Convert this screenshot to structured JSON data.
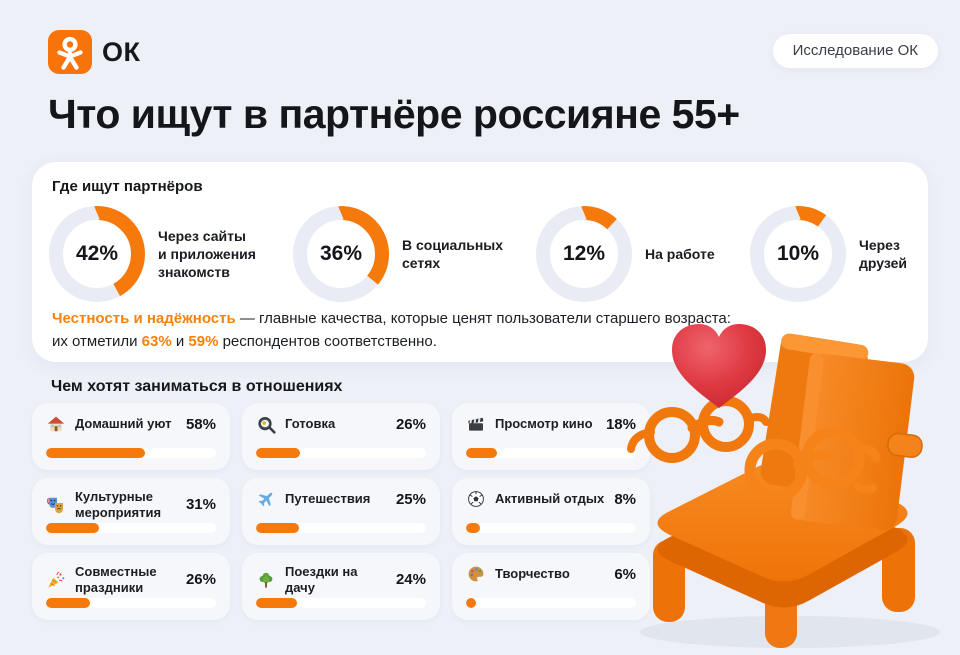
{
  "header": {
    "logo_text": "ОК",
    "badge": "Исследование ОК"
  },
  "title": "Что ищут в партнёре россияне 55+",
  "where_section": {
    "heading": "Где ищут партнёров",
    "items": [
      {
        "percent": 42,
        "percent_label": "42%",
        "label": "Через сайты\nи приложения\nзнакомств"
      },
      {
        "percent": 36,
        "percent_label": "36%",
        "label": "В социальных\nсетях"
      },
      {
        "percent": 12,
        "percent_label": "12%",
        "label": "На работе"
      },
      {
        "percent": 10,
        "percent_label": "10%",
        "label": "Через\nдрузей"
      }
    ],
    "note": {
      "highlight": "Честность и надёжность",
      "line1_rest": " — главные качества, которые ценят пользователи старшего возраста:",
      "line2_prefix": "их отметили ",
      "value1": "63%",
      "line2_mid": " и ",
      "value2": "59%",
      "line2_suffix": " респондентов соответственно."
    }
  },
  "activities_section": {
    "heading": "Чем хотят заниматься в отношениях",
    "items": [
      {
        "icon": "house-icon",
        "label": "Домашний уют",
        "percent": 58,
        "percent_label": "58%"
      },
      {
        "icon": "frying-pan-icon",
        "label": "Готовка",
        "percent": 26,
        "percent_label": "26%"
      },
      {
        "icon": "clapperboard-icon",
        "label": "Просмотр кино",
        "percent": 18,
        "percent_label": "18%"
      },
      {
        "icon": "theater-masks-icon",
        "label": "Культурные\nмероприятия",
        "percent": 31,
        "percent_label": "31%"
      },
      {
        "icon": "airplane-icon",
        "label": "Путешествия",
        "percent": 25,
        "percent_label": "25%"
      },
      {
        "icon": "soccer-ball-icon",
        "label": "Активный отдых",
        "percent": 8,
        "percent_label": "8%"
      },
      {
        "icon": "party-popper-icon",
        "label": "Совместные\nпраздники",
        "percent": 26,
        "percent_label": "26%"
      },
      {
        "icon": "tree-icon",
        "label": "Поездки на дачу",
        "percent": 24,
        "percent_label": "24%"
      },
      {
        "icon": "palette-icon",
        "label": "Творчество",
        "percent": 6,
        "percent_label": "6%"
      }
    ]
  },
  "colors": {
    "accent_orange": "#F6790B",
    "orange_text": "#F5820D",
    "ring_track": "#E9ECF5",
    "page_background": "#EDF0F7",
    "panel_background": "#FFFFFF",
    "card_background": "#F5F7FB",
    "heart_red": "#DF3A43",
    "text_dark": "#16181D"
  },
  "chart_data": [
    {
      "type": "pie",
      "title": "Где ищут партнёров",
      "labels": [
        "Через сайты и приложения знакомств",
        "В социальных сетях",
        "На работе",
        "Через друзей"
      ],
      "values": [
        42,
        36,
        12,
        10
      ],
      "unit": "%",
      "layout": "four separate donut gauges, orange arc clockwise from 12 o'clock on light track, value centered"
    },
    {
      "type": "bar",
      "title": "Чем хотят заниматься в отношениях",
      "categories": [
        "Домашний уют",
        "Готовка",
        "Просмотр кино",
        "Культурные мероприятия",
        "Путешествия",
        "Активный отдых",
        "Совместные праздники",
        "Поездки на дачу",
        "Творчество"
      ],
      "values": [
        58,
        26,
        18,
        31,
        25,
        8,
        26,
        24,
        6
      ],
      "unit": "%",
      "xlim": [
        0,
        100
      ],
      "layout": "3x3 grid of cards, horizontal orange progress bars on white tracks, value right-aligned"
    },
    {
      "type": "table",
      "title": "Главные качества",
      "categories": [
        "Честность",
        "Надёжность"
      ],
      "values": [
        63,
        59
      ],
      "unit": "%"
    }
  ]
}
